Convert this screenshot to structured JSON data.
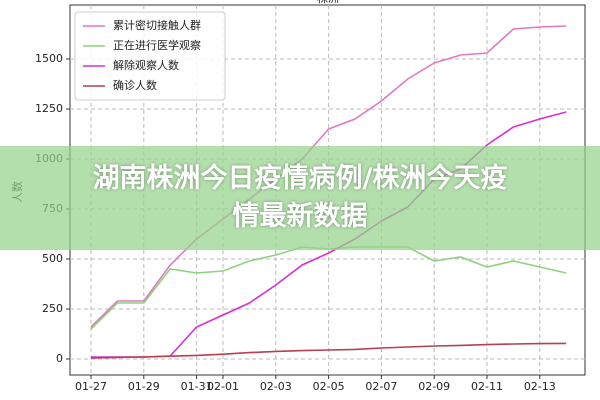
{
  "chart_data": {
    "type": "line",
    "title": "株洲",
    "ylabel": "人数",
    "categories": [
      "01-27",
      null,
      "01-29",
      null,
      "01-31",
      "02-01",
      null,
      "02-03",
      null,
      "02-05",
      null,
      "02-07",
      null,
      "02-09",
      null,
      "02-11",
      null,
      "02-13",
      null
    ],
    "series": [
      {
        "name": "累计密切接触人群",
        "color": "#e377c2",
        "values": [
          160,
          290,
          290,
          470,
          600,
          700,
          800,
          900,
          1000,
          1150,
          1200,
          1290,
          1400,
          1480,
          1520,
          1530,
          1650,
          1660,
          1665
        ]
      },
      {
        "name": "正在进行医学观察",
        "color": "#8fd17f",
        "values": [
          150,
          280,
          280,
          450,
          430,
          440,
          490,
          520,
          560,
          550,
          560,
          560,
          560,
          490,
          510,
          460,
          490,
          460,
          430
        ]
      },
      {
        "name": "解除观察人数",
        "color": "#d62fd6",
        "values": [
          10,
          10,
          10,
          15,
          160,
          220,
          280,
          370,
          470,
          530,
          600,
          690,
          760,
          900,
          950,
          1070,
          1160,
          1200,
          1235
        ]
      },
      {
        "name": "确诊人数",
        "color": "#b5404f",
        "values": [
          5,
          8,
          10,
          14,
          18,
          24,
          32,
          38,
          42,
          45,
          48,
          55,
          60,
          65,
          68,
          72,
          75,
          77,
          78
        ]
      }
    ],
    "ylim": [
      -80,
      1770
    ],
    "yticks": [
      0,
      250,
      500,
      750,
      1000,
      1250,
      1500
    ],
    "grid": true,
    "legend": "upper-left",
    "banner": "湖南株洲今日疫情病例/株洲今天疫情最新数据"
  }
}
